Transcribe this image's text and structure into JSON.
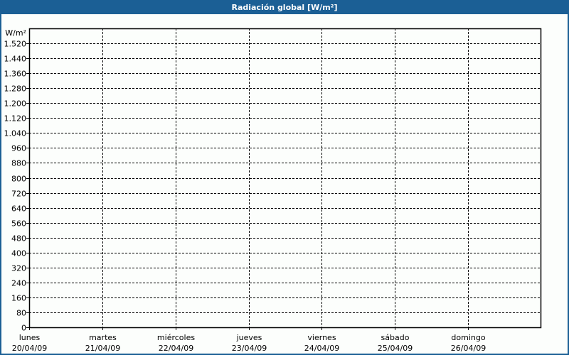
{
  "colors": {
    "titlebar": "#1b5f95",
    "grid": "#000000",
    "background": "#fcfefc"
  },
  "chart_data": {
    "type": "line",
    "title": "Radiación global [W/m²]",
    "ylabel": "W/m²",
    "ylim": [
      0,
      1600
    ],
    "yticks": [
      0,
      80,
      160,
      240,
      320,
      400,
      480,
      560,
      640,
      720,
      800,
      880,
      960,
      1040,
      1120,
      1200,
      1280,
      1360,
      1440,
      1520
    ],
    "ytick_labels": [
      "0",
      "80",
      "160",
      "240",
      "320",
      "400",
      "480",
      "560",
      "640",
      "720",
      "800",
      "880",
      "960",
      "1.040",
      "1.120",
      "1.200",
      "1.280",
      "1.360",
      "1.440",
      "1.520"
    ],
    "xticks": [
      {
        "day": "lunes",
        "date": "20/04/09"
      },
      {
        "day": "martes",
        "date": "21/04/09"
      },
      {
        "day": "miércoles",
        "date": "22/04/09"
      },
      {
        "day": "jueves",
        "date": "23/04/09"
      },
      {
        "day": "viernes",
        "date": "24/04/09"
      },
      {
        "day": "sábado",
        "date": "25/04/09"
      },
      {
        "day": "domingo",
        "date": "26/04/09"
      }
    ],
    "grid": true,
    "series": []
  }
}
